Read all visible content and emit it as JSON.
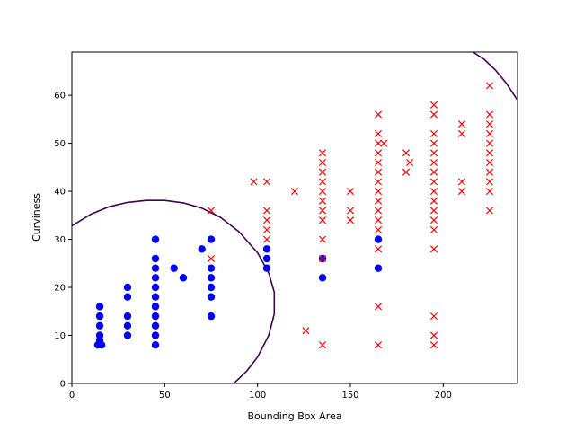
{
  "chart_data": {
    "type": "scatter",
    "xlabel": "Bounding Box Area",
    "ylabel": "Curviness",
    "xlim": [
      0,
      240
    ],
    "ylim": [
      0,
      69
    ],
    "x_ticks": [
      0,
      50,
      100,
      150,
      200
    ],
    "y_ticks": [
      0,
      10,
      20,
      30,
      40,
      50,
      60
    ],
    "grid": false,
    "legend": "none",
    "series": [
      {
        "marker": "circle",
        "color": "#0000ff",
        "points": [
          [
            14,
            8
          ],
          [
            16,
            8
          ],
          [
            15,
            9
          ],
          [
            15,
            10
          ],
          [
            15,
            12
          ],
          [
            15,
            14
          ],
          [
            15,
            16
          ],
          [
            30,
            10
          ],
          [
            30,
            12
          ],
          [
            30,
            14
          ],
          [
            30,
            18
          ],
          [
            30,
            20
          ],
          [
            45,
            8
          ],
          [
            45,
            10
          ],
          [
            45,
            12
          ],
          [
            45,
            14
          ],
          [
            45,
            16
          ],
          [
            45,
            18
          ],
          [
            45,
            20
          ],
          [
            45,
            22
          ],
          [
            45,
            24
          ],
          [
            45,
            26
          ],
          [
            45,
            30
          ],
          [
            55,
            24
          ],
          [
            60,
            22
          ],
          [
            70,
            28
          ],
          [
            75,
            14
          ],
          [
            75,
            18
          ],
          [
            75,
            20
          ],
          [
            75,
            22
          ],
          [
            75,
            24
          ],
          [
            75,
            30
          ],
          [
            105,
            24
          ],
          [
            105,
            26
          ],
          [
            105,
            28
          ],
          [
            135,
            22
          ],
          [
            135,
            26
          ],
          [
            165,
            24
          ],
          [
            165,
            30
          ]
        ]
      },
      {
        "marker": "x",
        "color": "#ff0000",
        "points": [
          [
            75,
            26
          ],
          [
            75,
            36
          ],
          [
            98,
            42
          ],
          [
            105,
            30
          ],
          [
            105,
            32
          ],
          [
            105,
            34
          ],
          [
            105,
            36
          ],
          [
            105,
            42
          ],
          [
            120,
            40
          ],
          [
            126,
            11
          ],
          [
            135,
            8
          ],
          [
            135,
            26
          ],
          [
            135,
            30
          ],
          [
            135,
            34
          ],
          [
            135,
            36
          ],
          [
            135,
            38
          ],
          [
            135,
            40
          ],
          [
            135,
            42
          ],
          [
            135,
            44
          ],
          [
            135,
            46
          ],
          [
            135,
            48
          ],
          [
            150,
            34
          ],
          [
            150,
            36
          ],
          [
            150,
            40
          ],
          [
            165,
            8
          ],
          [
            165,
            16
          ],
          [
            165,
            28
          ],
          [
            165,
            32
          ],
          [
            165,
            34
          ],
          [
            165,
            36
          ],
          [
            165,
            38
          ],
          [
            165,
            40
          ],
          [
            165,
            42
          ],
          [
            165,
            44
          ],
          [
            165,
            46
          ],
          [
            165,
            48
          ],
          [
            165,
            50
          ],
          [
            165,
            52
          ],
          [
            165,
            56
          ],
          [
            168,
            50
          ],
          [
            180,
            44
          ],
          [
            180,
            48
          ],
          [
            182,
            46
          ],
          [
            195,
            8
          ],
          [
            195,
            10
          ],
          [
            195,
            14
          ],
          [
            195,
            28
          ],
          [
            195,
            32
          ],
          [
            195,
            34
          ],
          [
            195,
            36
          ],
          [
            195,
            38
          ],
          [
            195,
            40
          ],
          [
            195,
            42
          ],
          [
            195,
            44
          ],
          [
            195,
            46
          ],
          [
            195,
            48
          ],
          [
            195,
            50
          ],
          [
            195,
            52
          ],
          [
            195,
            56
          ],
          [
            195,
            58
          ],
          [
            210,
            40
          ],
          [
            210,
            42
          ],
          [
            210,
            52
          ],
          [
            210,
            54
          ],
          [
            225,
            36
          ],
          [
            225,
            40
          ],
          [
            225,
            42
          ],
          [
            225,
            44
          ],
          [
            225,
            46
          ],
          [
            225,
            48
          ],
          [
            225,
            50
          ],
          [
            225,
            52
          ],
          [
            225,
            54
          ],
          [
            225,
            56
          ],
          [
            225,
            62
          ]
        ]
      }
    ],
    "decision_boundary": {
      "color": "#440154",
      "curves": [
        [
          [
            0,
            32.8
          ],
          [
            10,
            35.2
          ],
          [
            20,
            36.8
          ],
          [
            30,
            37.7
          ],
          [
            40,
            38.1
          ],
          [
            50,
            38.1
          ],
          [
            60,
            37.6
          ],
          [
            70,
            36.5
          ],
          [
            80,
            34.6
          ],
          [
            90,
            31.6
          ],
          [
            100,
            27.2
          ],
          [
            106,
            23
          ],
          [
            109,
            19
          ],
          [
            109,
            14.5
          ],
          [
            106,
            10
          ],
          [
            100,
            5.5
          ],
          [
            94,
            2.5
          ],
          [
            88,
            0.3
          ],
          [
            86,
            -1
          ]
        ],
        [
          [
            216,
            69
          ],
          [
            222,
            67.5
          ],
          [
            228,
            65.3
          ],
          [
            234,
            62.5
          ],
          [
            240,
            59
          ]
        ]
      ]
    }
  }
}
